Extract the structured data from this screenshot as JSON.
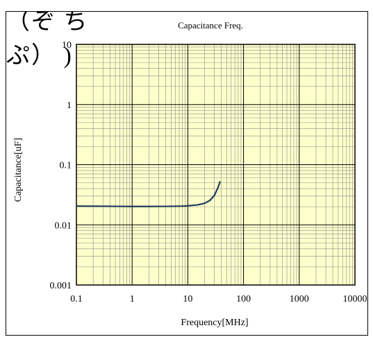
{
  "page": {
    "heading_fragment": "（ぞ ち ぷ） )"
  },
  "chart_data": {
    "type": "line",
    "title": "Capacitance Freq.",
    "xlabel": "Frequency[MHz]",
    "ylabel": "Capacitance[uF]",
    "x_scale": "log",
    "y_scale": "log",
    "xlim": [
      0.1,
      10000
    ],
    "ylim": [
      0.001,
      10
    ],
    "x_ticks": [
      "0.1",
      "1",
      "10",
      "100",
      "1000",
      "10000"
    ],
    "y_ticks": [
      "0.001",
      "0.01",
      "0.1",
      "1",
      "10"
    ],
    "grid": true,
    "plot_background": "#ffffcc",
    "line_color": "#1f3b5a",
    "series": [
      {
        "x": [
          0.1,
          0.2,
          0.5,
          1,
          2,
          5,
          8,
          10,
          15,
          20,
          25,
          30,
          35,
          38
        ],
        "y": [
          0.0205,
          0.0204,
          0.0203,
          0.0202,
          0.0202,
          0.0203,
          0.0205,
          0.0207,
          0.0215,
          0.0228,
          0.0255,
          0.031,
          0.042,
          0.053
        ]
      }
    ]
  }
}
